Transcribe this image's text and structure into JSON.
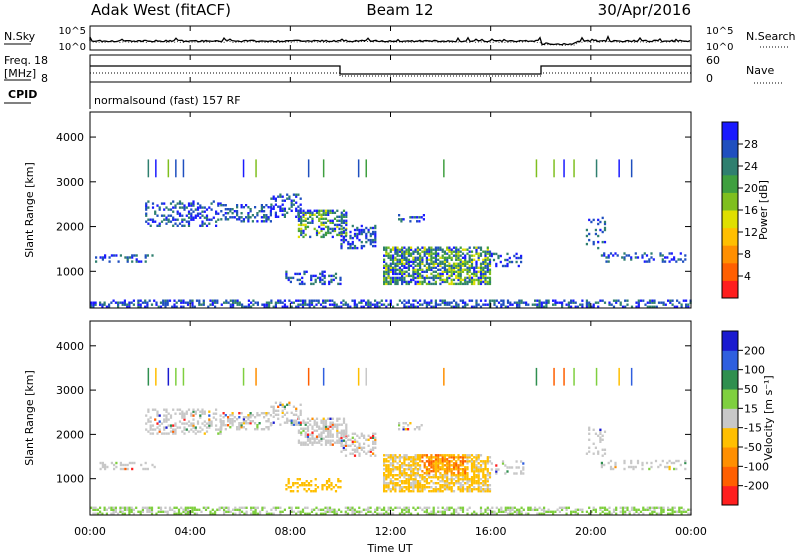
{
  "header": {
    "title": "Adak West (fitACF)",
    "beam": "Beam 12",
    "date": "30/Apr/2016"
  },
  "top_panels": {
    "nsky_label": "N.Sky",
    "nsky_ticks": [
      "10^5",
      "10^0"
    ],
    "nsearch_label": "N.Search",
    "nsearch_ticks": [
      "10^5",
      "10^0"
    ],
    "freq_label_1": "Freq.",
    "freq_label_2": "[MHz]",
    "freq_ticks": [
      "18",
      "8"
    ],
    "nave_label": "Nave",
    "nave_ticks": [
      "60",
      "0"
    ],
    "cpid_label": "CPID",
    "cpid_text": "normalsound (fast) 157 RF"
  },
  "chart_data": [
    {
      "type": "heatmap",
      "name": "Power",
      "ylabel": "Slant Range [km]",
      "xlabel": "",
      "ylim": [
        180,
        4560
      ],
      "yticks": [
        "4000",
        "3000",
        "2000",
        "1000"
      ],
      "colorbar_label": "Power [dB]",
      "colorbar_ticks": [
        "28",
        "24",
        "20",
        "16",
        "12",
        "8",
        "4"
      ],
      "colorbar_colors": [
        "#1a1aff",
        "#1f4fbf",
        "#2f7f6f",
        "#3f9f3f",
        "#7fbf1f",
        "#dfdf00",
        "#ffbf00",
        "#ff8f00",
        "#ff5f00",
        "#ff1f1f"
      ]
    },
    {
      "type": "heatmap",
      "name": "Velocity",
      "ylabel": "Slant Range [km]",
      "xlabel": "Time UT",
      "ylim": [
        180,
        4560
      ],
      "yticks": [
        "4000",
        "3000",
        "2000",
        "1000"
      ],
      "xticks": [
        "00:00",
        "04:00",
        "08:00",
        "12:00",
        "16:00",
        "20:00",
        "00:00"
      ],
      "xlim_hours": [
        0,
        24
      ],
      "colorbar_label": "Velocity [m s⁻¹]",
      "colorbar_ticks": [
        "200",
        "100",
        "50",
        "15",
        "-15",
        "-50",
        "-100",
        "-200"
      ],
      "colorbar_colors": [
        "#1a1acf",
        "#2f5fdf",
        "#2f8f4f",
        "#7fcf3f",
        "#c8c8c8",
        "#ffbf00",
        "#ff8f00",
        "#ff5f00",
        "#ff1f1f"
      ]
    }
  ]
}
